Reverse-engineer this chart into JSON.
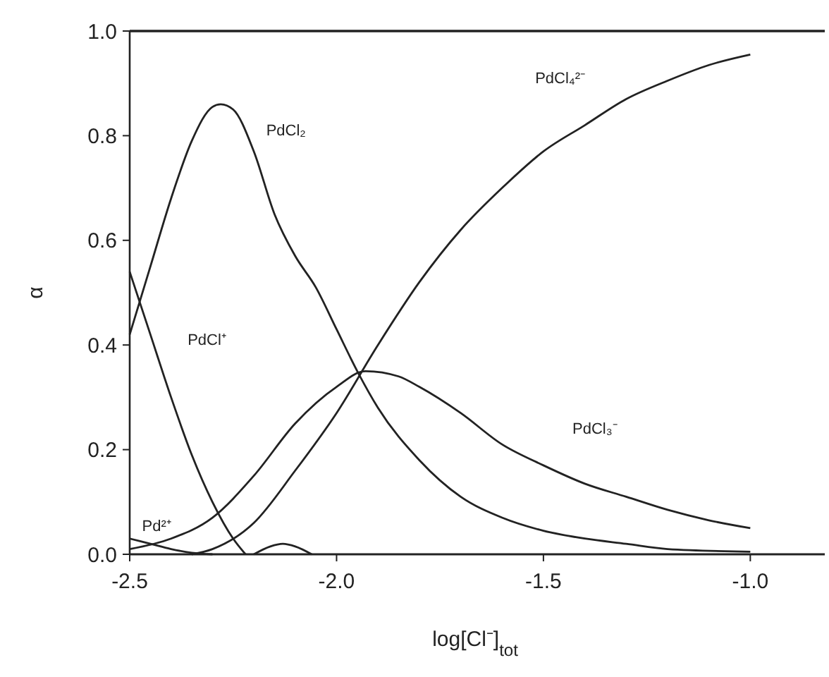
{
  "chart_data": {
    "type": "line",
    "xlabel": "log[Cl⁻]$_{tot}$",
    "ylabel": "α",
    "xlim": [
      -2.5,
      -0.82
    ],
    "xticks": [
      {
        "value": -2.5,
        "label": "-2.5"
      },
      {
        "value": -2.0,
        "label": "-2.0"
      },
      {
        "value": -1.5,
        "label": "-1.5"
      },
      {
        "value": -1.0,
        "label": "-1.0"
      }
    ],
    "ylim": [
      0,
      1
    ],
    "yticks": [
      {
        "value": 0,
        "label": "0.0"
      },
      {
        "value": 0.2,
        "label": "0.2"
      },
      {
        "value": 0.4,
        "label": "0.4"
      },
      {
        "value": 0.6,
        "label": "0.6"
      },
      {
        "value": 0.8,
        "label": "0.8"
      },
      {
        "value": 1,
        "label": "1.0"
      }
    ],
    "grid": false,
    "marker": "none",
    "line_style": "solid",
    "series": [
      {
        "name": "Pd²⁺",
        "color": "#222222",
        "x": [
          -2.5,
          -2.45,
          -2.4,
          -2.35,
          -2.3
        ],
        "values": [
          0.03,
          0.02,
          0.01,
          0.003,
          0
        ]
      },
      {
        "name": "PdCl⁺",
        "color": "#222222",
        "x": [
          -2.5,
          -2.45,
          -2.4,
          -2.35,
          -2.3,
          -2.25,
          -2.22
        ],
        "values": [
          0.54,
          0.42,
          0.3,
          0.19,
          0.1,
          0.03,
          0
        ]
      },
      {
        "name": "PdCl₂",
        "color": "#222222",
        "x": [
          -2.5,
          -2.45,
          -2.4,
          -2.35,
          -2.3,
          -2.28,
          -2.25,
          -2.2,
          -2.15,
          -2.1,
          -2.05,
          -2.0,
          -1.95,
          -1.9,
          -1.8,
          -1.7,
          -1.6,
          -1.5,
          -1.4,
          -1.3,
          -1.2,
          -1.0
        ],
        "values": [
          0.42,
          0.55,
          0.68,
          0.79,
          0.855,
          0.86,
          0.85,
          0.77,
          0.65,
          0.57,
          0.51,
          0.43,
          0.35,
          0.28,
          0.18,
          0.11,
          0.07,
          0.045,
          0.03,
          0.02,
          0.01,
          0.005
        ]
      },
      {
        "name": "PdCl₃⁻",
        "color": "#222222",
        "x": [
          -2.5,
          -2.4,
          -2.3,
          -2.2,
          -2.1,
          -2.0,
          -1.93,
          -1.85,
          -1.8,
          -1.7,
          -1.6,
          -1.5,
          -1.4,
          -1.3,
          -1.2,
          -1.1,
          -1.0
        ],
        "values": [
          0.01,
          0.03,
          0.07,
          0.15,
          0.25,
          0.32,
          0.35,
          0.34,
          0.32,
          0.27,
          0.21,
          0.17,
          0.135,
          0.11,
          0.085,
          0.065,
          0.05
        ]
      },
      {
        "name": "PdCl₄²⁻",
        "color": "#222222",
        "x": [
          -2.35,
          -2.3,
          -2.2,
          -2.1,
          -2.0,
          -1.9,
          -1.8,
          -1.7,
          -1.6,
          -1.5,
          -1.4,
          -1.3,
          -1.2,
          -1.1,
          -1.0
        ],
        "values": [
          0,
          0.01,
          0.06,
          0.16,
          0.27,
          0.4,
          0.52,
          0.62,
          0.7,
          0.77,
          0.82,
          0.87,
          0.905,
          0.935,
          0.955
        ]
      },
      {
        "color": "#222222",
        "x": [
          -2.2,
          -2.16,
          -2.13,
          -2.1,
          -2.06
        ],
        "values": [
          0,
          0.015,
          0.02,
          0.015,
          0
        ]
      }
    ]
  }
}
